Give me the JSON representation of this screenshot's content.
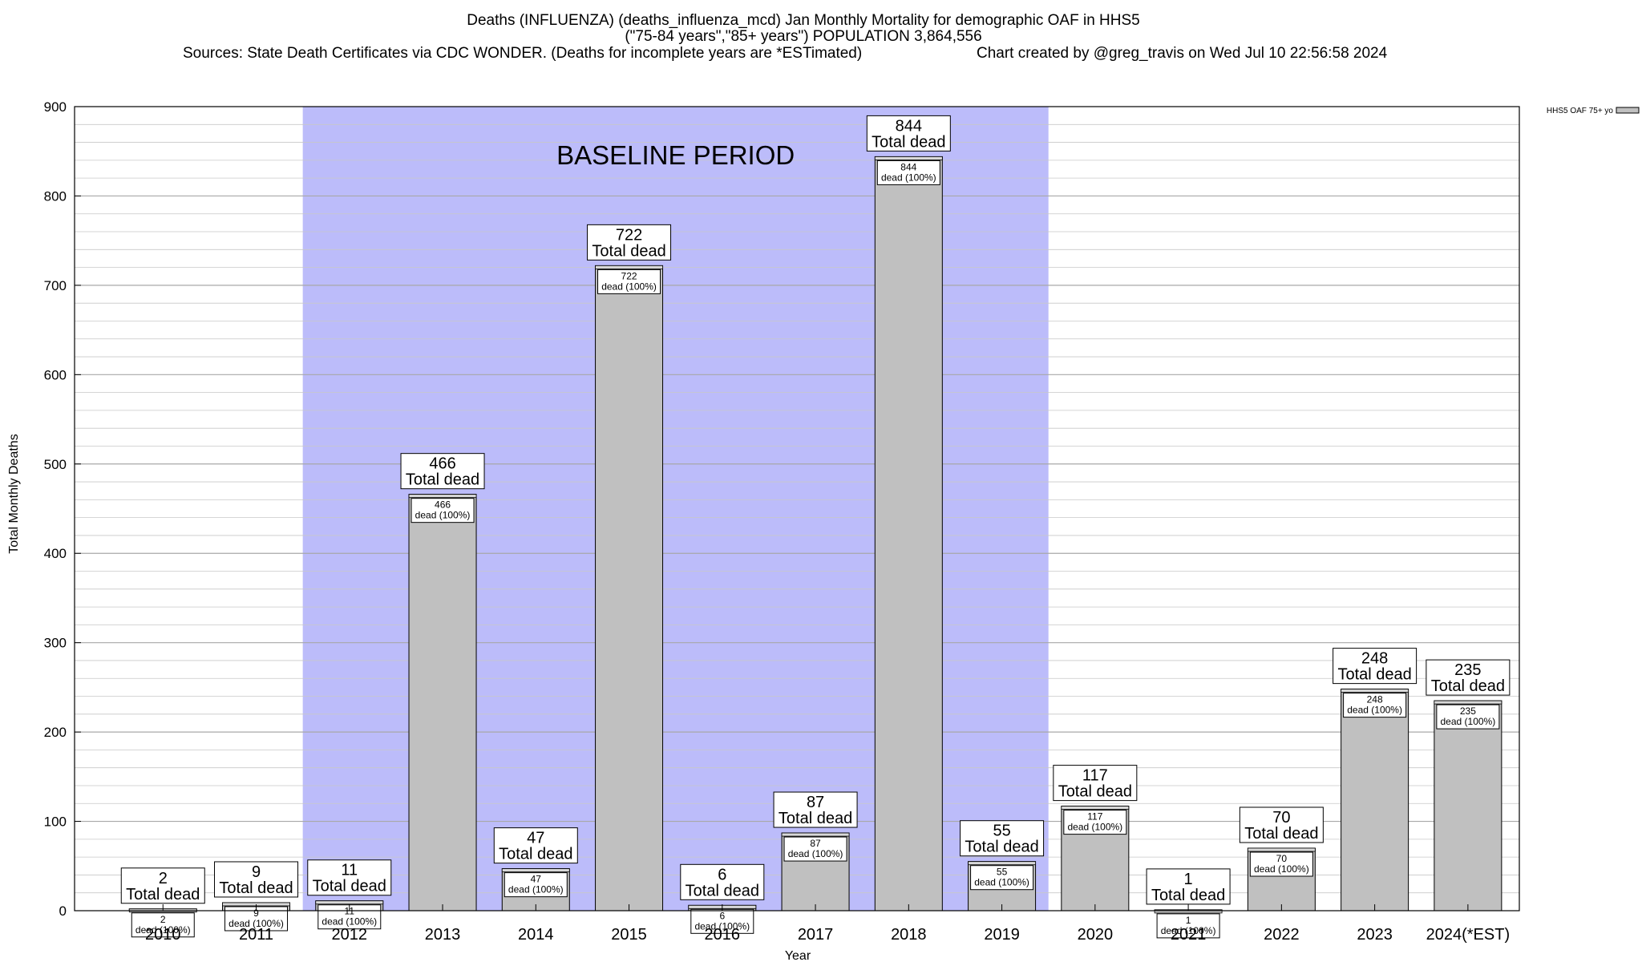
{
  "header": {
    "line1": "Deaths (INFLUENZA) (deaths_influenza_mcd) Jan Monthly Mortality for demographic OAF in HHS5",
    "line2": "(\"75-84 years\",\"85+ years\") POPULATION 3,864,556",
    "line3_left": "Sources: State Death Certificates via CDC WONDER. (Deaths for incomplete years are *ESTimated)",
    "line3_right": "Chart created by @greg_travis on Wed Jul 10 22:56:58 2024"
  },
  "colors": {
    "bar": "#c0c0c0",
    "baseline_band": "#bcbcfa",
    "grid": "#c8c8c8"
  },
  "chart_data": {
    "type": "bar",
    "title": "Deaths (INFLUENZA) (deaths_influenza_mcd) Jan Monthly Mortality for demographic OAF in HHS5",
    "xlabel": "Year",
    "ylabel": "Total Monthly Deaths",
    "ylim": [
      0,
      900
    ],
    "yticks": [
      0,
      100,
      200,
      300,
      400,
      500,
      600,
      700,
      800,
      900
    ],
    "grid": true,
    "legend": {
      "placement": "top-right outside",
      "entries": [
        "HHS5 OAF 75+ yo"
      ]
    },
    "categories": [
      "2010",
      "2011",
      "2012",
      "2013",
      "2014",
      "2015",
      "2016",
      "2017",
      "2018",
      "2019",
      "2020",
      "2021",
      "2022",
      "2023",
      "2024(*EST)"
    ],
    "series": [
      {
        "name": "HHS5 OAF 75+ yo",
        "values": [
          2,
          9,
          11,
          466,
          47,
          722,
          6,
          87,
          844,
          55,
          117,
          1,
          70,
          248,
          235
        ]
      }
    ],
    "total_label": "Total dead",
    "inner_label": "dead (100%)",
    "baseline": {
      "label": "BASELINE PERIOD",
      "from": "2012",
      "to": "2019"
    }
  }
}
